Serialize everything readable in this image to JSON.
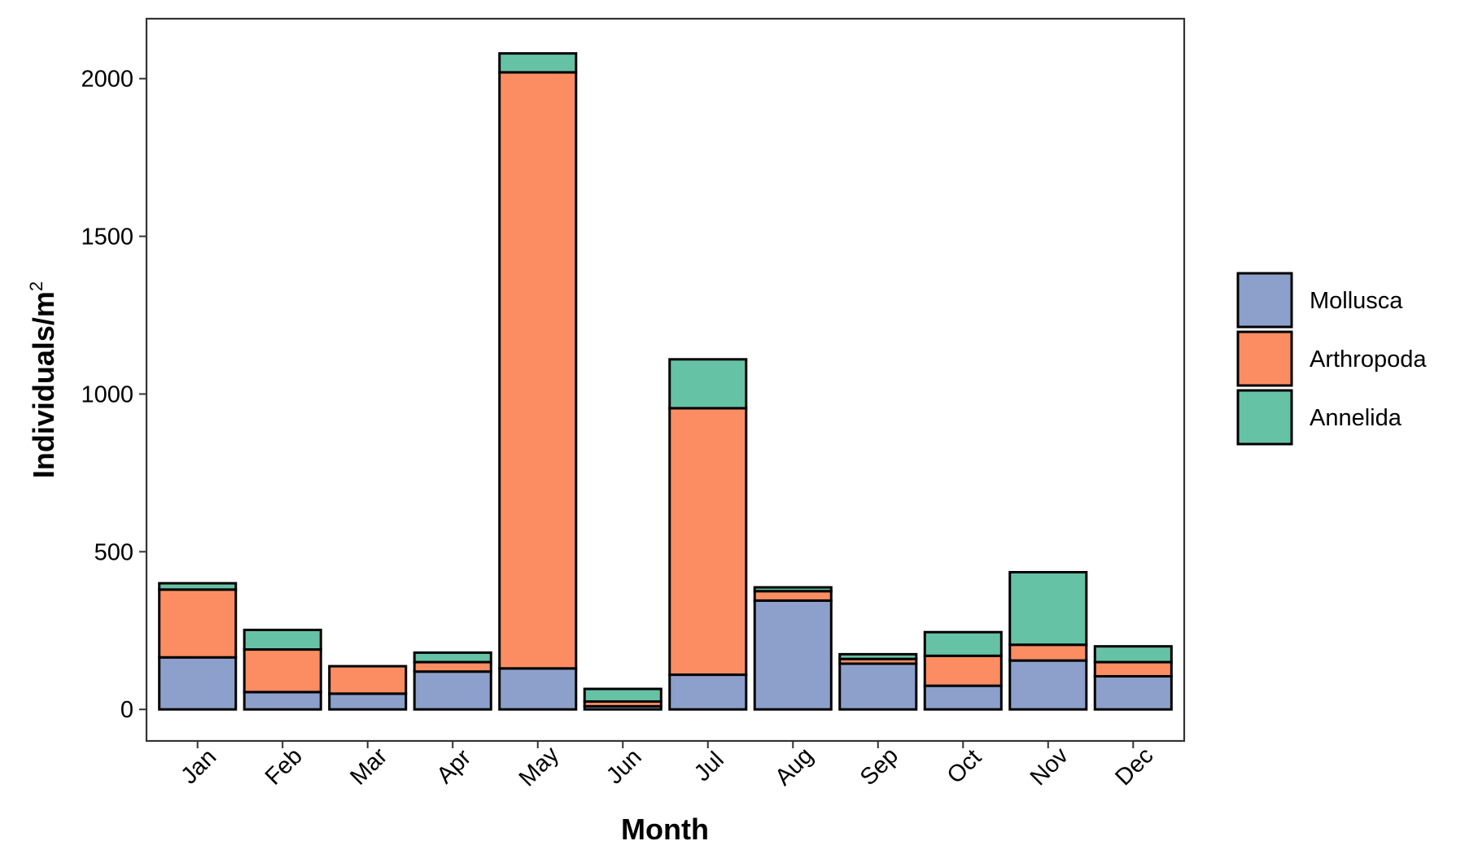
{
  "chart_data": {
    "type": "bar",
    "stacked": true,
    "categories": [
      "Jan",
      "Feb",
      "Mar",
      "Apr",
      "May",
      "Jun",
      "Jul",
      "Aug",
      "Sep",
      "Oct",
      "Nov",
      "Dec"
    ],
    "series": [
      {
        "name": "Mollusca",
        "color": "#8da0cb",
        "values": [
          165,
          55,
          50,
          120,
          130,
          10,
          110,
          345,
          145,
          75,
          155,
          105
        ]
      },
      {
        "name": "Arthropoda",
        "color": "#fc8d62",
        "values": [
          215,
          135,
          87,
          30,
          1890,
          15,
          845,
          30,
          15,
          95,
          50,
          45
        ]
      },
      {
        "name": "Annelida",
        "color": "#66c2a5",
        "values": [
          20,
          62,
          0,
          30,
          60,
          40,
          155,
          12,
          15,
          75,
          230,
          50
        ]
      }
    ],
    "xlabel": "Month",
    "ylabel": "Individuals/m",
    "ylabel_superscript": "2",
    "yticks": [
      0,
      500,
      1000,
      1500,
      2000
    ],
    "ylim": [
      -100,
      2190
    ],
    "grid": false,
    "legend_position": "right",
    "legend_order": [
      "Mollusca",
      "Arthropoda",
      "Annelida"
    ]
  }
}
